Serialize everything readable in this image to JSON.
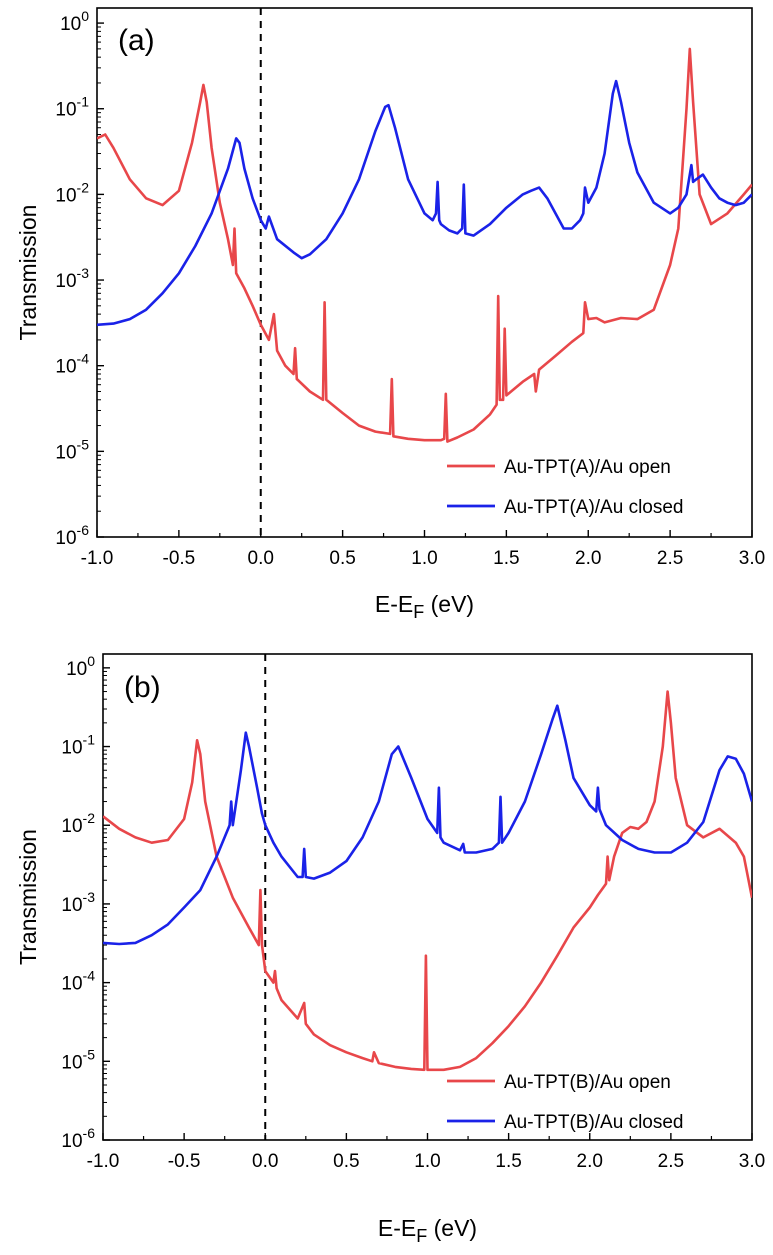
{
  "chart_data": [
    {
      "type": "line",
      "panel_label": "(a)",
      "xlabel": "E-E",
      "xlabel_sub": "F",
      "xlabel_unit": " (eV)",
      "ylabel": "Transmission",
      "xlim": [
        -1.0,
        3.0
      ],
      "ylim": [
        1e-06,
        1.5
      ],
      "y_scale": "log",
      "x_ticks": [
        "-1.0",
        "-0.5",
        "0.0",
        "0.5",
        "1.0",
        "1.5",
        "2.0",
        "2.5",
        "3.0"
      ],
      "y_ticks": [
        {
          "base": "10",
          "exp": "0"
        },
        {
          "base": "10",
          "exp": "-1"
        },
        {
          "base": "10",
          "exp": "-2"
        },
        {
          "base": "10",
          "exp": "-3"
        },
        {
          "base": "10",
          "exp": "-4"
        },
        {
          "base": "10",
          "exp": "-5"
        },
        {
          "base": "10",
          "exp": "-6"
        }
      ],
      "fermi_line_x": 0.0,
      "legend_position": "bottom-right",
      "series": [
        {
          "name": "Au-TPT(A)/Au open",
          "color": "#e8474a",
          "x": [
            -1.0,
            -0.95,
            -0.9,
            -0.8,
            -0.7,
            -0.6,
            -0.5,
            -0.42,
            -0.37,
            -0.35,
            -0.33,
            -0.3,
            -0.25,
            -0.2,
            -0.17,
            -0.16,
            -0.15,
            -0.1,
            -0.05,
            0.0,
            0.05,
            0.08,
            0.1,
            0.15,
            0.2,
            0.21,
            0.22,
            0.3,
            0.38,
            0.39,
            0.4,
            0.5,
            0.6,
            0.7,
            0.79,
            0.8,
            0.81,
            0.9,
            1.0,
            1.1,
            1.12,
            1.13,
            1.14,
            1.2,
            1.3,
            1.4,
            1.44,
            1.45,
            1.46,
            1.48,
            1.49,
            1.5,
            1.6,
            1.67,
            1.68,
            1.7,
            1.8,
            1.9,
            1.97,
            1.98,
            2.0,
            2.05,
            2.1,
            2.2,
            2.3,
            2.4,
            2.5,
            2.55,
            2.6,
            2.62,
            2.64,
            2.68,
            2.75,
            2.85,
            2.95,
            3.0
          ],
          "values": [
            0.045,
            0.05,
            0.035,
            0.015,
            0.009,
            0.0075,
            0.011,
            0.04,
            0.12,
            0.19,
            0.12,
            0.035,
            0.008,
            0.003,
            0.0015,
            0.004,
            0.0012,
            0.0008,
            0.0005,
            0.0003,
            0.0002,
            0.0004,
            0.00015,
            0.0001,
            8e-05,
            0.00016,
            7e-05,
            5e-05,
            4e-05,
            0.00055,
            4e-05,
            2.8e-05,
            2e-05,
            1.7e-05,
            1.6e-05,
            7e-05,
            1.5e-05,
            1.4e-05,
            1.35e-05,
            1.35e-05,
            1.4e-05,
            4.7e-05,
            1.3e-05,
            1.45e-05,
            1.8e-05,
            2.7e-05,
            3.5e-05,
            0.00065,
            4e-05,
            4e-05,
            0.00027,
            4.5e-05,
            6.5e-05,
            8e-05,
            5e-05,
            9e-05,
            0.00013,
            0.00019,
            0.00024,
            0.00055,
            0.00035,
            0.00036,
            0.00032,
            0.00036,
            0.00035,
            0.00045,
            0.0015,
            0.004,
            0.1,
            0.5,
            0.12,
            0.01,
            0.0045,
            0.006,
            0.01,
            0.013
          ]
        },
        {
          "name": "Au-TPT(A)/Au closed",
          "color": "#1a22e8",
          "x": [
            -1.0,
            -0.9,
            -0.8,
            -0.7,
            -0.6,
            -0.5,
            -0.4,
            -0.3,
            -0.2,
            -0.15,
            -0.13,
            -0.1,
            -0.05,
            0.0,
            0.03,
            0.05,
            0.1,
            0.2,
            0.25,
            0.3,
            0.4,
            0.5,
            0.6,
            0.7,
            0.76,
            0.78,
            0.82,
            0.9,
            1.0,
            1.05,
            1.07,
            1.08,
            1.09,
            1.1,
            1.15,
            1.2,
            1.23,
            1.24,
            1.25,
            1.3,
            1.4,
            1.5,
            1.6,
            1.65,
            1.7,
            1.75,
            1.8,
            1.85,
            1.9,
            1.95,
            1.97,
            1.98,
            2.0,
            2.05,
            2.1,
            2.15,
            2.17,
            2.2,
            2.25,
            2.3,
            2.4,
            2.5,
            2.55,
            2.6,
            2.63,
            2.64,
            2.66,
            2.7,
            2.75,
            2.8,
            2.85,
            2.9,
            2.95,
            3.0
          ],
          "values": [
            0.0003,
            0.00031,
            0.00035,
            0.00045,
            0.0007,
            0.0012,
            0.0025,
            0.006,
            0.02,
            0.045,
            0.04,
            0.02,
            0.009,
            0.005,
            0.004,
            0.0055,
            0.003,
            0.0021,
            0.0018,
            0.002,
            0.003,
            0.006,
            0.015,
            0.055,
            0.105,
            0.11,
            0.06,
            0.015,
            0.006,
            0.005,
            0.006,
            0.014,
            0.005,
            0.0045,
            0.0038,
            0.0035,
            0.004,
            0.013,
            0.0035,
            0.0033,
            0.0045,
            0.007,
            0.01,
            0.011,
            0.012,
            0.009,
            0.006,
            0.004,
            0.004,
            0.005,
            0.006,
            0.012,
            0.008,
            0.012,
            0.03,
            0.15,
            0.21,
            0.12,
            0.04,
            0.018,
            0.008,
            0.006,
            0.007,
            0.01,
            0.022,
            0.014,
            0.015,
            0.017,
            0.012,
            0.009,
            0.008,
            0.0075,
            0.008,
            0.01
          ]
        }
      ]
    },
    {
      "type": "line",
      "panel_label": "(b)",
      "xlabel": "E-E",
      "xlabel_sub": "F",
      "xlabel_unit": " (eV)",
      "ylabel": "Transmission",
      "xlim": [
        -1.0,
        3.0
      ],
      "ylim": [
        1e-06,
        1.5
      ],
      "y_scale": "log",
      "x_ticks": [
        "-1.0",
        "-0.5",
        "0.0",
        "0.5",
        "1.0",
        "1.5",
        "2.0",
        "2.5",
        "3.0"
      ],
      "y_ticks": [
        {
          "base": "10",
          "exp": "0"
        },
        {
          "base": "10",
          "exp": "-1"
        },
        {
          "base": "10",
          "exp": "-2"
        },
        {
          "base": "10",
          "exp": "-3"
        },
        {
          "base": "10",
          "exp": "-4"
        },
        {
          "base": "10",
          "exp": "-5"
        },
        {
          "base": "10",
          "exp": "-6"
        }
      ],
      "fermi_line_x": 0.0,
      "legend_position": "bottom-right",
      "series": [
        {
          "name": "Au-TPT(B)/Au open",
          "color": "#e8474a",
          "x": [
            -1.0,
            -0.9,
            -0.8,
            -0.7,
            -0.6,
            -0.5,
            -0.45,
            -0.42,
            -0.4,
            -0.37,
            -0.3,
            -0.2,
            -0.1,
            -0.04,
            -0.03,
            -0.02,
            0.0,
            0.05,
            0.06,
            0.07,
            0.1,
            0.2,
            0.24,
            0.25,
            0.3,
            0.4,
            0.5,
            0.6,
            0.66,
            0.67,
            0.7,
            0.8,
            0.9,
            0.98,
            0.99,
            1.0,
            1.1,
            1.2,
            1.3,
            1.4,
            1.5,
            1.6,
            1.7,
            1.8,
            1.9,
            2.0,
            2.05,
            2.1,
            2.11,
            2.12,
            2.15,
            2.2,
            2.25,
            2.3,
            2.35,
            2.4,
            2.45,
            2.48,
            2.5,
            2.53,
            2.6,
            2.7,
            2.8,
            2.9,
            2.95,
            3.0
          ],
          "values": [
            0.013,
            0.009,
            0.007,
            0.006,
            0.0065,
            0.012,
            0.035,
            0.12,
            0.08,
            0.02,
            0.004,
            0.0012,
            0.0005,
            0.0003,
            0.0015,
            0.0003,
            0.00014,
            0.0001,
            0.00014,
            8.5e-05,
            6e-05,
            3.5e-05,
            5.5e-05,
            3e-05,
            2.2e-05,
            1.6e-05,
            1.3e-05,
            1.1e-05,
            1e-05,
            1.3e-05,
            9.5e-06,
            8.5e-06,
            8e-06,
            7.8e-06,
            0.00022,
            7.8e-06,
            7.8e-06,
            8.5e-06,
            1.1e-05,
            1.7e-05,
            2.8e-05,
            5e-05,
            0.0001,
            0.00022,
            0.0005,
            0.0009,
            0.0013,
            0.0018,
            0.004,
            0.002,
            0.004,
            0.008,
            0.0095,
            0.009,
            0.011,
            0.02,
            0.1,
            0.5,
            0.2,
            0.04,
            0.01,
            0.007,
            0.009,
            0.006,
            0.004,
            0.0012
          ]
        },
        {
          "name": "Au-TPT(B)/Au closed",
          "color": "#1a22e8",
          "x": [
            -1.0,
            -0.9,
            -0.8,
            -0.7,
            -0.6,
            -0.5,
            -0.4,
            -0.3,
            -0.22,
            -0.21,
            -0.2,
            -0.15,
            -0.12,
            -0.1,
            -0.05,
            -0.02,
            0.0,
            0.05,
            0.1,
            0.2,
            0.23,
            0.24,
            0.25,
            0.3,
            0.4,
            0.5,
            0.6,
            0.7,
            0.78,
            0.82,
            0.9,
            1.0,
            1.06,
            1.07,
            1.08,
            1.1,
            1.2,
            1.22,
            1.23,
            1.25,
            1.3,
            1.4,
            1.44,
            1.45,
            1.46,
            1.5,
            1.6,
            1.7,
            1.77,
            1.8,
            1.85,
            1.9,
            2.0,
            2.04,
            2.05,
            2.06,
            2.1,
            2.2,
            2.3,
            2.4,
            2.5,
            2.6,
            2.7,
            2.8,
            2.85,
            2.9,
            2.95,
            3.0
          ],
          "values": [
            0.00032,
            0.00031,
            0.00032,
            0.0004,
            0.00055,
            0.0009,
            0.0015,
            0.004,
            0.01,
            0.02,
            0.01,
            0.05,
            0.15,
            0.1,
            0.03,
            0.014,
            0.01,
            0.006,
            0.004,
            0.0022,
            0.0022,
            0.005,
            0.0022,
            0.0021,
            0.0025,
            0.0035,
            0.007,
            0.02,
            0.08,
            0.1,
            0.04,
            0.012,
            0.008,
            0.03,
            0.007,
            0.006,
            0.0048,
            0.0058,
            0.0045,
            0.0045,
            0.0045,
            0.005,
            0.006,
            0.023,
            0.006,
            0.008,
            0.02,
            0.08,
            0.22,
            0.33,
            0.12,
            0.04,
            0.018,
            0.015,
            0.03,
            0.016,
            0.01,
            0.0065,
            0.005,
            0.0045,
            0.0045,
            0.006,
            0.011,
            0.05,
            0.075,
            0.07,
            0.045,
            0.02
          ]
        }
      ]
    }
  ]
}
